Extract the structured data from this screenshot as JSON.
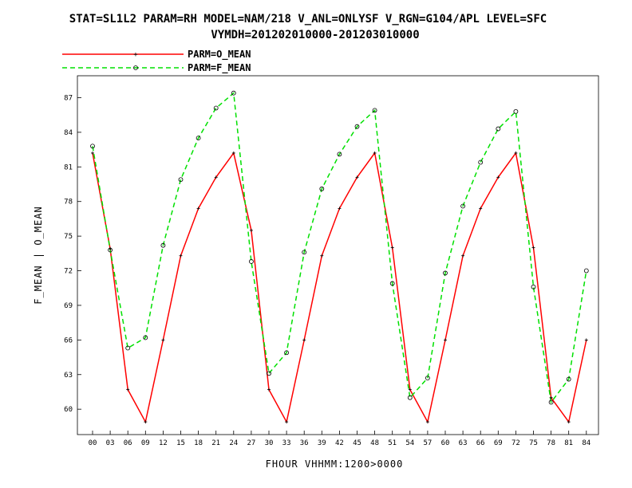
{
  "chart_data": {
    "type": "line",
    "title_line1": "STAT=SL1L2 PARAM=RH MODEL=NAM/218 V_ANL=ONLYSF V_RGN=G104/APL LEVEL=SFC",
    "title_line2": "VYMDH=201202010000-201203010000",
    "xlabel": "FHOUR VHHMM:1200>0000",
    "ylabel": "F_MEAN | O_MEAN",
    "categories": [
      "00",
      "03",
      "06",
      "09",
      "12",
      "15",
      "18",
      "21",
      "24",
      "27",
      "30",
      "33",
      "36",
      "39",
      "42",
      "45",
      "48",
      "51",
      "54",
      "57",
      "60",
      "63",
      "66",
      "69",
      "72",
      "75",
      "78",
      "81",
      "84"
    ],
    "yticks": [
      "60",
      "63",
      "66",
      "69",
      "72",
      "75",
      "78",
      "81",
      "84",
      "87"
    ],
    "ylim": [
      57.8,
      88.9
    ],
    "grid": false,
    "legend_position": "top-left",
    "series": [
      {
        "name": "PARM=O_MEAN",
        "color": "#ff0000",
        "dash": "solid",
        "marker": "plus",
        "values": [
          82.2,
          73.9,
          61.7,
          58.9,
          66.0,
          73.3,
          77.4,
          80.1,
          82.2,
          75.5,
          61.7,
          58.9,
          66.0,
          73.3,
          77.4,
          80.1,
          82.2,
          74.0,
          61.7,
          58.9,
          66.0,
          73.3,
          77.4,
          80.1,
          82.2,
          74.0,
          61.0,
          58.9,
          66.0
        ]
      },
      {
        "name": "PARM=F_MEAN",
        "color": "#00e000",
        "dash": "dashed",
        "marker": "circle",
        "values": [
          82.8,
          73.8,
          65.3,
          66.2,
          74.2,
          79.9,
          83.5,
          86.1,
          87.4,
          72.8,
          63.1,
          64.9,
          73.6,
          79.1,
          82.1,
          84.5,
          85.9,
          70.9,
          61.0,
          62.7,
          71.8,
          77.6,
          81.4,
          84.3,
          85.8,
          70.6,
          60.6,
          62.6,
          72.0
        ]
      }
    ]
  }
}
